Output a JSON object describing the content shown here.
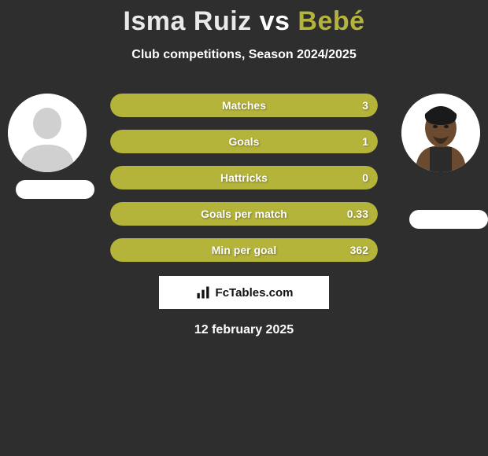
{
  "title_parts": {
    "p1": "Isma Ruiz",
    "vs": " vs ",
    "p2": "Bebé"
  },
  "title_colors": {
    "p1": "#e9e9e9",
    "vs": "#ffffff",
    "p2": "#b4b33a"
  },
  "subtitle": "Club competitions, Season 2024/2025",
  "left_avatar_placeholder": true,
  "right_avatar_is_photo": true,
  "bars": [
    {
      "label": "Matches",
      "left": "",
      "right": "3",
      "left_pct": 0,
      "right_pct": 100,
      "left_color": "#e9e9e9",
      "right_color": "#b4b33a"
    },
    {
      "label": "Goals",
      "left": "",
      "right": "1",
      "left_pct": 0,
      "right_pct": 100,
      "left_color": "#e9e9e9",
      "right_color": "#b4b33a"
    },
    {
      "label": "Hattricks",
      "left": "",
      "right": "0",
      "left_pct": 0,
      "right_pct": 100,
      "left_color": "#e9e9e9",
      "right_color": "#b4b33a"
    },
    {
      "label": "Goals per match",
      "left": "",
      "right": "0.33",
      "left_pct": 0,
      "right_pct": 100,
      "left_color": "#e9e9e9",
      "right_color": "#b4b33a"
    },
    {
      "label": "Min per goal",
      "left": "",
      "right": "362",
      "left_pct": 0,
      "right_pct": 100,
      "left_color": "#e9e9e9",
      "right_color": "#b4b33a"
    }
  ],
  "footer_brand": "FcTables.com",
  "date_text": "12 february 2025",
  "background_color": "#2e2e2e"
}
